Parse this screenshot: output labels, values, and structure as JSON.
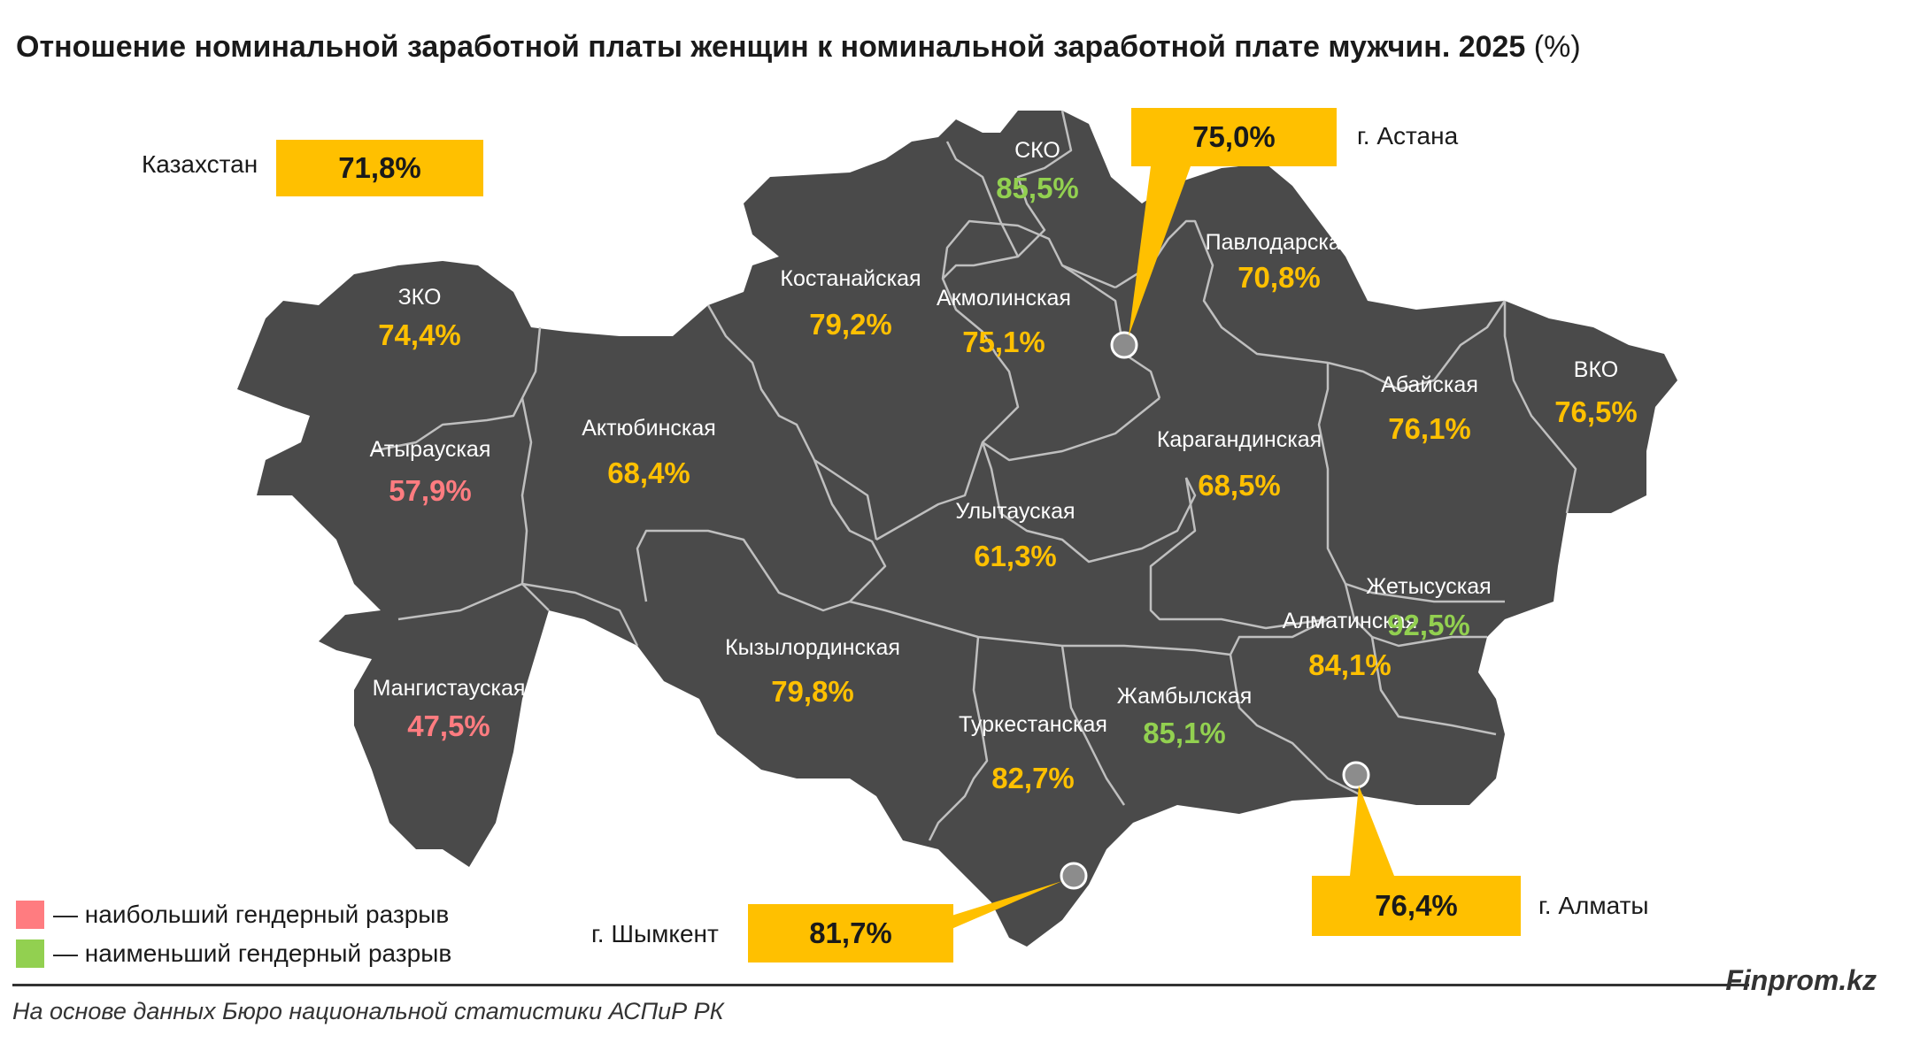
{
  "title": {
    "main": "Отношение номинальной заработной платы женщин к номинальной заработной плате мужчин. 2025",
    "unit": " (%)"
  },
  "national": {
    "label": "Казахстан",
    "value": "71,8%"
  },
  "colors": {
    "region_fill": "#4a4a4a",
    "border": "#bfbfbf",
    "value_default": "#ffc000",
    "value_high_gap": "#ff7c80",
    "value_low_gap": "#92d050",
    "callout": "#ffc000"
  },
  "regions": [
    {
      "name": "ЗКО",
      "value": "74,4%",
      "category": "default"
    },
    {
      "name": "Атырауская",
      "value": "57,9%",
      "category": "high_gap"
    },
    {
      "name": "Мангистауская",
      "value": "47,5%",
      "category": "high_gap"
    },
    {
      "name": "Актюбинская",
      "value": "68,4%",
      "category": "default"
    },
    {
      "name": "Костанайская",
      "value": "79,2%",
      "category": "default"
    },
    {
      "name": "СКО",
      "value": "85,5%",
      "category": "low_gap"
    },
    {
      "name": "Акмолинская",
      "value": "75,1%",
      "category": "default"
    },
    {
      "name": "Павлодарская",
      "value": "70,8%",
      "category": "default"
    },
    {
      "name": "Карагандинская",
      "value": "68,5%",
      "category": "default"
    },
    {
      "name": "Улытауская",
      "value": "61,3%",
      "category": "default"
    },
    {
      "name": "Абайская",
      "value": "76,1%",
      "category": "default"
    },
    {
      "name": "ВКО",
      "value": "76,5%",
      "category": "default"
    },
    {
      "name": "Кызылординская",
      "value": "79,8%",
      "category": "default"
    },
    {
      "name": "Туркестанская",
      "value": "82,7%",
      "category": "default"
    },
    {
      "name": "Жамбылская",
      "value": "85,1%",
      "category": "low_gap"
    },
    {
      "name": "Алматинская",
      "value": "84,1%",
      "category": "default"
    },
    {
      "name": "Жетысуская",
      "value": "92,5%",
      "category": "low_gap"
    }
  ],
  "cities": {
    "astana": {
      "label": "г. Астана",
      "value": "75,0%"
    },
    "almaty": {
      "label": "г. Алматы",
      "value": "76,4%"
    },
    "shymkent": {
      "label": "г. Шымкент",
      "value": "81,7%"
    }
  },
  "legend": {
    "high_gap": "— наибольший гендерный разрыв",
    "low_gap": "— наименьший гендерный разрыв"
  },
  "footer": {
    "brand": "Finprom.kz",
    "source": "На основе данных Бюро национальной статистики АСПиР РК"
  }
}
